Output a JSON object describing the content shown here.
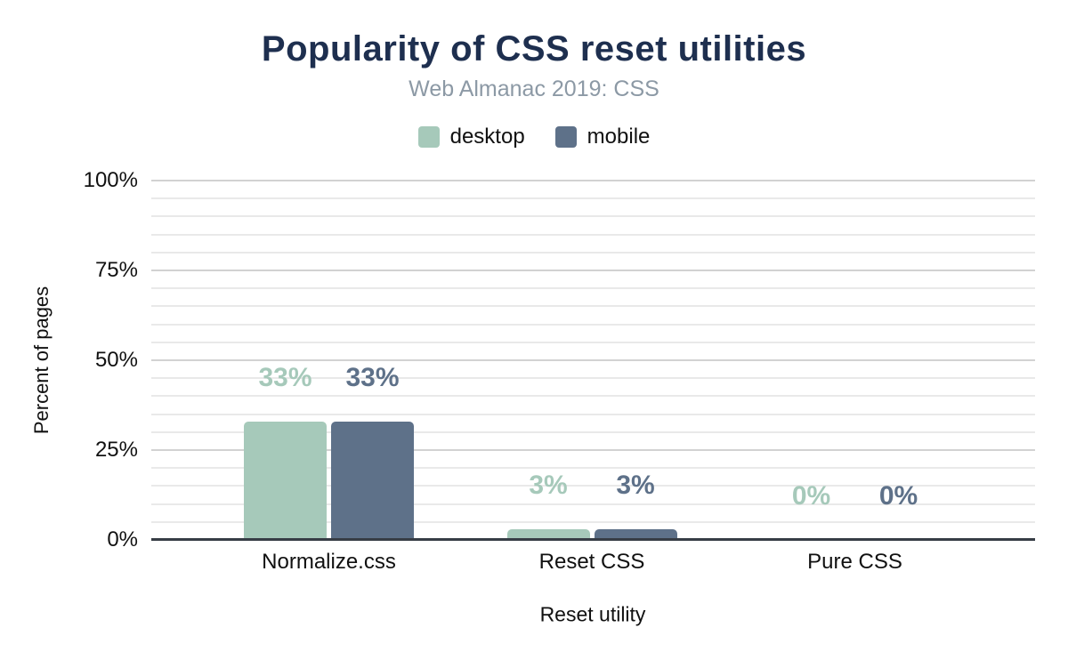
{
  "chart_data": {
    "type": "bar",
    "title": "Popularity of CSS reset utilities",
    "subtitle": "Web Almanac 2019: CSS",
    "categories": [
      "Normalize.css",
      "Reset CSS",
      "Pure CSS"
    ],
    "series": [
      {
        "name": "desktop",
        "color": "#a6c9ba",
        "values": [
          33,
          3,
          0
        ],
        "labels": [
          "33%",
          "3%",
          "0%"
        ]
      },
      {
        "name": "mobile",
        "color": "#5e7189",
        "values": [
          33,
          3,
          0
        ],
        "labels": [
          "33%",
          "3%",
          "0%"
        ]
      }
    ],
    "xlabel": "Reset utility",
    "ylabel": "Percent of pages",
    "ylim": [
      0,
      100
    ],
    "y_ticks": [
      {
        "value": 0,
        "label": "0%"
      },
      {
        "value": 25,
        "label": "25%"
      },
      {
        "value": 50,
        "label": "50%"
      },
      {
        "value": 75,
        "label": "75%"
      },
      {
        "value": 100,
        "label": "100%"
      }
    ],
    "grid_step": 5,
    "major_grid_step": 25,
    "grid": true,
    "legend_position": "top",
    "data_labels": true
  },
  "colors": {
    "title": "#1e2f4f",
    "subtitle": "#8c99a5",
    "axis_text": "#111111",
    "grid_minor": "#e9e9e9",
    "grid_major": "#d2d2d2",
    "baseline": "#373d45"
  }
}
